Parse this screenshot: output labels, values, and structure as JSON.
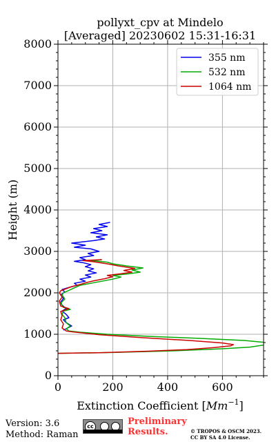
{
  "chart_data": {
    "type": "line",
    "title_line1": "pollyxt_cpv at Mindelo",
    "title_line2": "[Averaged] 20230602 15:31-16:31",
    "xlabel_prefix": "Extinction Coefficient [",
    "xlabel_unit": "Mm",
    "xlabel_exp": "−1",
    "xlabel_suffix": "]",
    "ylabel": "Height (m)",
    "xlim": [
      0,
      750
    ],
    "ylim": [
      0,
      8000
    ],
    "xticks": [
      0,
      200,
      400,
      600
    ],
    "yticks": [
      0,
      1000,
      2000,
      3000,
      4000,
      5000,
      6000,
      7000,
      8000
    ],
    "grid": true,
    "legend_position": "top-right",
    "series": [
      {
        "name": "355 nm",
        "color": "#0000ee",
        "points": [
          [
            20,
            1100
          ],
          [
            35,
            1150
          ],
          [
            50,
            1200
          ],
          [
            30,
            1280
          ],
          [
            20,
            1350
          ],
          [
            40,
            1400
          ],
          [
            30,
            1480
          ],
          [
            15,
            1560
          ],
          [
            30,
            1620
          ],
          [
            15,
            1700
          ],
          [
            10,
            1780
          ],
          [
            20,
            1860
          ],
          [
            10,
            1950
          ],
          [
            25,
            2020
          ],
          [
            15,
            2080
          ],
          [
            40,
            2130
          ],
          [
            70,
            2180
          ],
          [
            60,
            2230
          ],
          [
            100,
            2280
          ],
          [
            80,
            2330
          ],
          [
            120,
            2380
          ],
          [
            100,
            2430
          ],
          [
            140,
            2480
          ],
          [
            110,
            2530
          ],
          [
            130,
            2580
          ],
          [
            100,
            2630
          ],
          [
            120,
            2680
          ],
          [
            90,
            2730
          ],
          [
            60,
            2760
          ],
          [
            100,
            2800
          ],
          [
            80,
            2850
          ],
          [
            130,
            2900
          ],
          [
            110,
            2950
          ],
          [
            150,
            3000
          ],
          [
            120,
            3060
          ],
          [
            60,
            3100
          ],
          [
            100,
            3150
          ],
          [
            50,
            3200
          ],
          [
            130,
            3260
          ],
          [
            170,
            3300
          ],
          [
            140,
            3350
          ],
          [
            180,
            3400
          ],
          [
            120,
            3450
          ],
          [
            160,
            3500
          ],
          [
            130,
            3550
          ],
          [
            180,
            3600
          ],
          [
            150,
            3650
          ],
          [
            190,
            3700
          ]
        ]
      },
      {
        "name": "532 nm",
        "color": "#00aa00",
        "points": [
          [
            0,
            540
          ],
          [
            200,
            560
          ],
          [
            420,
            600
          ],
          [
            600,
            650
          ],
          [
            700,
            690
          ],
          [
            760,
            750
          ],
          [
            760,
            800
          ],
          [
            680,
            850
          ],
          [
            520,
            900
          ],
          [
            330,
            950
          ],
          [
            180,
            1000
          ],
          [
            80,
            1050
          ],
          [
            40,
            1080
          ],
          [
            30,
            1130
          ],
          [
            45,
            1200
          ],
          [
            30,
            1280
          ],
          [
            25,
            1400
          ],
          [
            15,
            1480
          ],
          [
            20,
            1560
          ],
          [
            45,
            1600
          ],
          [
            20,
            1650
          ],
          [
            10,
            1750
          ],
          [
            25,
            1850
          ],
          [
            15,
            1950
          ],
          [
            20,
            2000
          ],
          [
            40,
            2060
          ],
          [
            60,
            2120
          ],
          [
            80,
            2180
          ],
          [
            120,
            2230
          ],
          [
            160,
            2280
          ],
          [
            200,
            2330
          ],
          [
            230,
            2380
          ],
          [
            200,
            2420
          ],
          [
            260,
            2460
          ],
          [
            300,
            2500
          ],
          [
            270,
            2550
          ],
          [
            310,
            2600
          ],
          [
            250,
            2650
          ],
          [
            200,
            2700
          ],
          [
            180,
            2740
          ],
          [
            120,
            2780
          ],
          [
            160,
            2800
          ]
        ]
      },
      {
        "name": "1064 nm",
        "color": "#cc0000",
        "points": [
          [
            0,
            540
          ],
          [
            150,
            555
          ],
          [
            320,
            590
          ],
          [
            470,
            630
          ],
          [
            570,
            680
          ],
          [
            630,
            720
          ],
          [
            640,
            750
          ],
          [
            600,
            790
          ],
          [
            480,
            850
          ],
          [
            300,
            920
          ],
          [
            150,
            990
          ],
          [
            50,
            1060
          ],
          [
            30,
            1080
          ],
          [
            15,
            1150
          ],
          [
            20,
            1250
          ],
          [
            10,
            1350
          ],
          [
            15,
            1450
          ],
          [
            10,
            1550
          ],
          [
            40,
            1620
          ],
          [
            10,
            1680
          ],
          [
            5,
            1800
          ],
          [
            15,
            1900
          ],
          [
            5,
            2000
          ],
          [
            10,
            2050
          ],
          [
            30,
            2100
          ],
          [
            50,
            2150
          ],
          [
            80,
            2200
          ],
          [
            100,
            2240
          ],
          [
            130,
            2290
          ],
          [
            170,
            2340
          ],
          [
            200,
            2390
          ],
          [
            180,
            2420
          ],
          [
            230,
            2460
          ],
          [
            270,
            2500
          ],
          [
            240,
            2540
          ],
          [
            280,
            2590
          ],
          [
            220,
            2650
          ],
          [
            180,
            2700
          ],
          [
            130,
            2750
          ],
          [
            90,
            2780
          ],
          [
            160,
            2800
          ]
        ]
      }
    ]
  },
  "footer": {
    "version": "Version: 3.6",
    "method": "Method: Raman",
    "cc_logo_text": "cc",
    "preliminary_line1": "Preliminary",
    "preliminary_line2": "Results.",
    "license_line1": "© TROPOS & OSCM 2023.",
    "license_line2": "CC BY SA 4.0 License."
  }
}
